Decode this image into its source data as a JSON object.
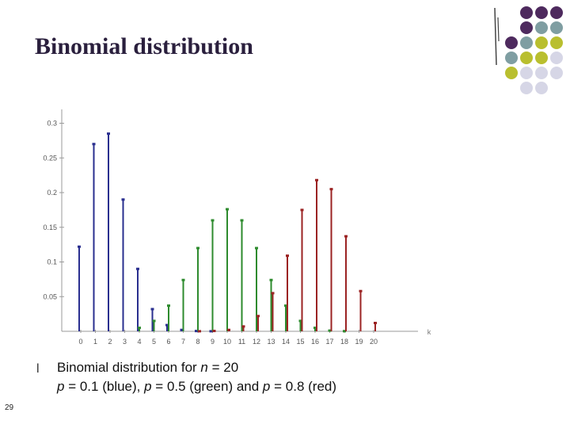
{
  "slide": {
    "title": "Binomial distribution",
    "bullet_glyph": "l",
    "caption_line1": {
      "pre": "Binomial distribution for ",
      "n_var": "n",
      "mid": " = 20"
    },
    "caption_line2": {
      "p1_var": "p",
      "p1_text": " = 0.1 (blue), ",
      "p2_var": "p",
      "p2_text": " = 0.5 (green) and ",
      "p3_var": "p",
      "p3_text": " = 0.8 (red)"
    },
    "slide_number": "29"
  },
  "decor": {
    "dot_colors": [
      "#ffffff",
      "#4e2a5e",
      "#4e2a5e",
      "#4e2a5e",
      "#ffffff",
      "#4e2a5e",
      "#7f9ea2",
      "#7f9ea2",
      "#4e2a5e",
      "#7f9ea2",
      "#b9bf2f",
      "#b9bf2f",
      "#7f9ea2",
      "#b9bf2f",
      "#b9bf2f",
      "#d6d6e6",
      "#b9bf2f",
      "#d6d6e6",
      "#d6d6e6",
      "#d6d6e6",
      "#ffffff",
      "#d6d6e6",
      "#d6d6e6",
      "#ffffff"
    ],
    "line_color": "#444444"
  },
  "chart_data": {
    "type": "bar",
    "title": "",
    "xlabel": "k",
    "ylabel": "",
    "x": [
      0,
      1,
      2,
      3,
      4,
      5,
      6,
      7,
      8,
      9,
      10,
      11,
      12,
      13,
      14,
      15,
      16,
      17,
      18,
      19,
      20
    ],
    "x_tick_labels": [
      "0",
      "1",
      "2",
      "3",
      "4",
      "5",
      "6",
      "7",
      "8",
      "9",
      "10",
      "11",
      "12",
      "13",
      "14",
      "15",
      "16",
      "17",
      "18",
      "19",
      "20"
    ],
    "ylim": [
      0,
      0.32
    ],
    "y_ticks": [
      0.05,
      0.1,
      0.15,
      0.2,
      0.25,
      0.3
    ],
    "y_tick_labels": [
      "0.05",
      "0.1",
      "0.15",
      "0.2",
      "0.25",
      "0.3"
    ],
    "grid": false,
    "series": [
      {
        "p": 0.1,
        "color": "#2a2f8f",
        "values": [
          0.122,
          0.27,
          0.285,
          0.19,
          0.09,
          0.032,
          0.009,
          0.002,
          0.0004,
          0.0001,
          0,
          0,
          0,
          0,
          0,
          0,
          0,
          0,
          0,
          0,
          0
        ]
      },
      {
        "p": 0.5,
        "color": "#2e8b2e",
        "values": [
          0,
          0,
          0,
          0,
          0.005,
          0.015,
          0.037,
          0.074,
          0.12,
          0.16,
          0.176,
          0.16,
          0.12,
          0.074,
          0.037,
          0.015,
          0.005,
          0.001,
          0.0002,
          0,
          0
        ]
      },
      {
        "p": 0.8,
        "color": "#9b2323",
        "values": [
          0,
          0,
          0,
          0,
          0,
          0,
          0,
          0,
          0.0001,
          0.0005,
          0.002,
          0.007,
          0.022,
          0.055,
          0.109,
          0.175,
          0.218,
          0.205,
          0.137,
          0.058,
          0.012
        ]
      }
    ]
  }
}
